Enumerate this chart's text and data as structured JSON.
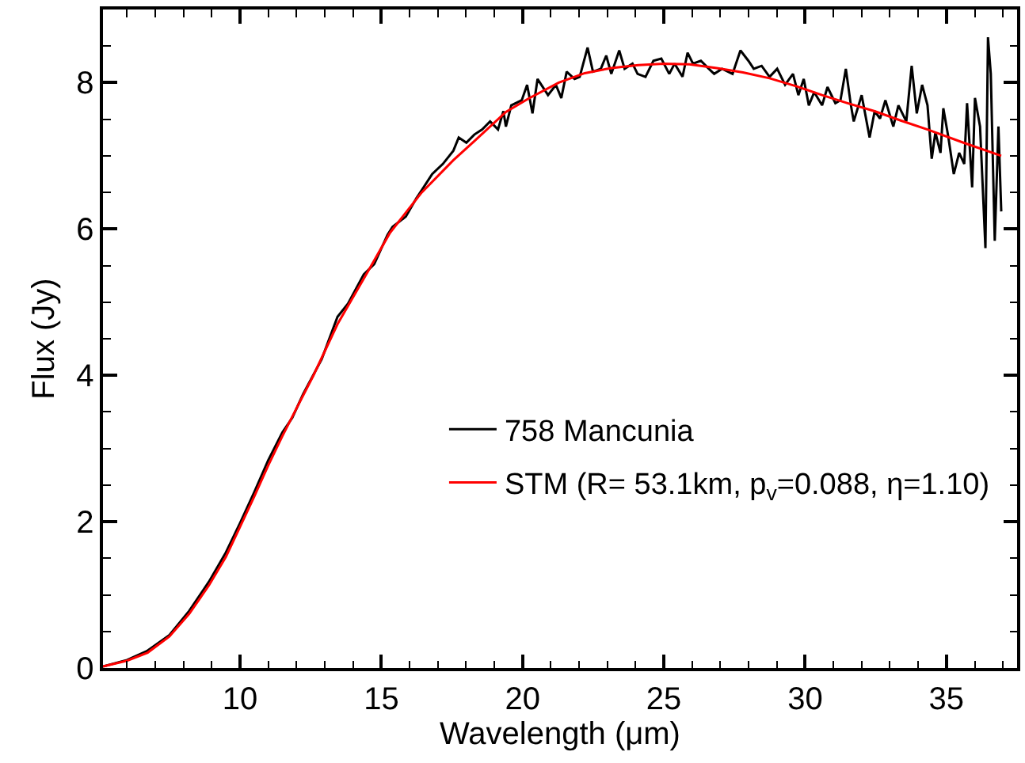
{
  "chart_data": {
    "type": "line",
    "xlabel": "Wavelength (μm)",
    "ylabel": "Flux (Jy)",
    "xlim": [
      5.15,
      37.5
    ],
    "ylim": [
      0,
      9
    ],
    "xticks": [
      {
        "value": 6,
        "label": null
      },
      {
        "value": 7,
        "label": null
      },
      {
        "value": 8,
        "label": null
      },
      {
        "value": 9,
        "label": null
      },
      10,
      {
        "value": 11,
        "label": null
      },
      {
        "value": 12,
        "label": null
      },
      {
        "value": 13,
        "label": null
      },
      {
        "value": 14,
        "label": null
      },
      15,
      {
        "value": 16,
        "label": null
      },
      {
        "value": 17,
        "label": null
      },
      {
        "value": 18,
        "label": null
      },
      {
        "value": 19,
        "label": null
      },
      20,
      {
        "value": 21,
        "label": null
      },
      {
        "value": 22,
        "label": null
      },
      {
        "value": 23,
        "label": null
      },
      {
        "value": 24,
        "label": null
      },
      25,
      {
        "value": 26,
        "label": null
      },
      {
        "value": 27,
        "label": null
      },
      {
        "value": 28,
        "label": null
      },
      {
        "value": 29,
        "label": null
      },
      30,
      {
        "value": 31,
        "label": null
      },
      {
        "value": 32,
        "label": null
      },
      {
        "value": 33,
        "label": null
      },
      {
        "value": 34,
        "label": null
      },
      35,
      {
        "value": 36,
        "label": null
      },
      {
        "value": 37,
        "label": null
      }
    ],
    "yticks": [
      0,
      {
        "value": 0.5,
        "label": null
      },
      {
        "value": 1,
        "label": null
      },
      {
        "value": 1.5,
        "label": null
      },
      2,
      {
        "value": 2.5,
        "label": null
      },
      {
        "value": 3,
        "label": null
      },
      {
        "value": 3.5,
        "label": null
      },
      4,
      {
        "value": 4.5,
        "label": null
      },
      {
        "value": 5,
        "label": null
      },
      {
        "value": 5.5,
        "label": null
      },
      6,
      {
        "value": 6.5,
        "label": null
      },
      {
        "value": 7,
        "label": null
      },
      {
        "value": 7.5,
        "label": null
      },
      8,
      {
        "value": 8.5,
        "label": null
      }
    ],
    "grid": false,
    "legend": "bottom right",
    "series": [
      {
        "name": "758 Mancunia",
        "color": "#000000",
        "x": [
          5.15,
          6.0,
          6.7,
          7.5,
          8.2,
          8.9,
          9.5,
          10.0,
          10.5,
          11.0,
          11.5,
          11.85,
          12.24,
          12.89,
          13.45,
          13.82,
          14.38,
          14.75,
          15.22,
          15.4,
          15.87,
          16.24,
          16.43,
          16.8,
          17.18,
          17.55,
          17.74,
          18.01,
          18.29,
          18.57,
          18.85,
          19.13,
          19.32,
          19.41,
          19.6,
          19.97,
          20.16,
          20.35,
          20.53,
          20.9,
          21.18,
          21.37,
          21.56,
          21.84,
          22.02,
          22.3,
          22.49,
          22.77,
          22.96,
          23.14,
          23.42,
          23.61,
          23.89,
          24.07,
          24.35,
          24.63,
          24.91,
          25.19,
          25.38,
          25.66,
          25.84,
          26.03,
          26.31,
          26.59,
          26.78,
          27.06,
          27.43,
          27.71,
          27.99,
          28.18,
          28.46,
          28.74,
          29.01,
          29.29,
          29.57,
          29.76,
          29.95,
          30.13,
          30.32,
          30.6,
          30.79,
          31.07,
          31.25,
          31.44,
          31.62,
          31.72,
          32.0,
          32.28,
          32.46,
          32.65,
          32.84,
          33.12,
          33.3,
          33.58,
          33.77,
          33.95,
          34.14,
          34.33,
          34.48,
          34.61,
          34.79,
          34.89,
          35.07,
          35.26,
          35.45,
          35.63,
          35.73,
          35.91,
          36.01,
          36.19,
          36.38,
          36.47,
          36.57,
          36.71,
          36.84,
          36.94
        ],
        "values": [
          0.02,
          0.11,
          0.23,
          0.45,
          0.78,
          1.18,
          1.58,
          1.98,
          2.4,
          2.84,
          3.22,
          3.42,
          3.75,
          4.22,
          4.8,
          4.98,
          5.38,
          5.52,
          5.92,
          6.03,
          6.17,
          6.42,
          6.53,
          6.75,
          6.89,
          7.07,
          7.25,
          7.18,
          7.29,
          7.36,
          7.47,
          7.36,
          7.61,
          7.4,
          7.69,
          7.76,
          7.97,
          7.58,
          8.05,
          7.83,
          7.97,
          7.79,
          8.15,
          8.05,
          8.08,
          8.48,
          8.15,
          8.19,
          8.37,
          8.12,
          8.44,
          8.19,
          8.26,
          8.12,
          8.08,
          8.3,
          8.33,
          8.12,
          8.26,
          8.08,
          8.41,
          8.26,
          8.3,
          8.19,
          8.12,
          8.19,
          8.12,
          8.44,
          8.3,
          8.19,
          8.23,
          8.08,
          8.19,
          7.97,
          8.12,
          7.83,
          8.05,
          7.69,
          7.87,
          7.69,
          7.94,
          7.72,
          7.76,
          8.19,
          7.69,
          7.47,
          7.83,
          7.25,
          7.61,
          7.51,
          7.76,
          7.4,
          7.69,
          7.47,
          8.23,
          7.58,
          7.97,
          7.69,
          6.96,
          7.32,
          7.04,
          7.65,
          7.25,
          6.75,
          7.04,
          6.89,
          7.72,
          6.57,
          7.79,
          7.4,
          5.74,
          8.62,
          8.12,
          5.84,
          7.4,
          6.24
        ]
      },
      {
        "name": "STM (R= 53.1km, p$_{v}$=0.088, η=1.10)",
        "color": "#ff0000",
        "x": [
          5.15,
          6.0,
          6.73,
          7.5,
          8.2,
          8.9,
          9.5,
          10.0,
          10.5,
          11.0,
          11.5,
          12.0,
          12.6,
          13.45,
          14.57,
          15.31,
          16.43,
          17.55,
          18.29,
          19.41,
          20.2,
          21.28,
          22.2,
          23.14,
          24.1,
          25.0,
          25.9,
          26.87,
          27.8,
          28.74,
          29.7,
          30.6,
          31.5,
          32.46,
          33.4,
          34.33,
          35.6,
          36.94
        ],
        "values": [
          0.02,
          0.1,
          0.21,
          0.43,
          0.74,
          1.13,
          1.52,
          1.93,
          2.34,
          2.77,
          3.17,
          3.55,
          4.0,
          4.7,
          5.45,
          5.95,
          6.5,
          6.94,
          7.2,
          7.6,
          7.78,
          8.0,
          8.13,
          8.2,
          8.24,
          8.26,
          8.25,
          8.2,
          8.14,
          8.06,
          7.95,
          7.83,
          7.72,
          7.61,
          7.48,
          7.36,
          7.18,
          7.0
        ]
      }
    ]
  }
}
